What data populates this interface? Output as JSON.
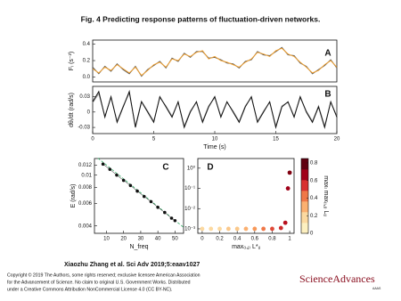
{
  "title": "Fig. 4 Predicting response patterns of fluctuation-driven networks.",
  "credit": "Xiaozhu Zhang et al. Sci Adv 2019;5:eaav1027",
  "copyright": [
    "Copyright © 2019 The Authors, some rights reserved; exclusive licensee American Association",
    "for the Advancement of Science. No claim to original U.S. Government Works. Distributed",
    "under a Creative Commons Attribution NonCommercial License 4.0 (CC BY-NC)."
  ],
  "logo": {
    "name": "ScienceAdvances",
    "sub": "AAAS"
  },
  "chart_data": [
    {
      "type": "line",
      "panel_label": "A",
      "ylabel": "Fᵢ (s⁻²)",
      "xlim": [
        0,
        20
      ],
      "ylim": [
        -0.06,
        0.45
      ],
      "yticks": [
        {
          "value": 0,
          "label": "0.0"
        },
        0.2,
        0.4
      ],
      "x": [
        0,
        0.5,
        1,
        1.5,
        2,
        2.5,
        3,
        3.5,
        4,
        4.5,
        5,
        5.5,
        6,
        6.5,
        7,
        7.5,
        8,
        8.5,
        9,
        9.5,
        10,
        10.5,
        11,
        11.5,
        12,
        12.5,
        13,
        13.5,
        14,
        14.5,
        15,
        15.5,
        16,
        16.5,
        17,
        17.5,
        18,
        18.5,
        19,
        19.5,
        20
      ],
      "series": [
        {
          "color": "#555555",
          "values": [
            0.12,
            0.04,
            0.13,
            0.07,
            0.16,
            0.09,
            0.04,
            0.13,
            0.01,
            0.09,
            0.14,
            0.19,
            0.11,
            0.23,
            0.19,
            0.29,
            0.24,
            0.31,
            0.31,
            0.23,
            0.24,
            0.21,
            0.17,
            0.16,
            0.11,
            0.19,
            0.21,
            0.31,
            0.27,
            0.26,
            0.31,
            0.36,
            0.27,
            0.26,
            0.17,
            0.13,
            0.04,
            0.09,
            0.14,
            0.21,
            0.11
          ]
        },
        {
          "color": "#f0a030",
          "values": [
            0.1,
            0.05,
            0.12,
            0.08,
            0.15,
            0.1,
            0.05,
            0.12,
            0.02,
            0.08,
            0.15,
            0.18,
            0.12,
            0.22,
            0.2,
            0.28,
            0.25,
            0.3,
            0.32,
            0.22,
            0.25,
            0.2,
            0.18,
            0.15,
            0.12,
            0.18,
            0.22,
            0.3,
            0.28,
            0.25,
            0.32,
            0.35,
            0.28,
            0.25,
            0.18,
            0.12,
            0.05,
            0.08,
            0.15,
            0.2,
            0.12
          ]
        }
      ]
    },
    {
      "type": "line",
      "panel_label": "B",
      "ylabel": "dθᵢ/dt (rad/s)",
      "xlabel": "Time (s)",
      "xlim": [
        0,
        20
      ],
      "ylim": [
        -0.042,
        0.05
      ],
      "yticks": [
        -0.03,
        0,
        0.03
      ],
      "xticks": [
        0,
        5,
        10,
        15,
        20
      ],
      "x": [
        0,
        0.5,
        1,
        1.5,
        2,
        2.5,
        3,
        3.5,
        4,
        4.5,
        5,
        5.5,
        6,
        6.5,
        7,
        7.5,
        8,
        8.5,
        9,
        9.5,
        10,
        10.5,
        11,
        11.5,
        12,
        12.5,
        13,
        13.5,
        14,
        14.5,
        15,
        15.5,
        16,
        16.5,
        17,
        17.5,
        18,
        18.5,
        19,
        19.5,
        20
      ],
      "series": [
        {
          "color": "#999999",
          "values": [
            0.018,
            0.036,
            -0.008,
            0.028,
            -0.018,
            0.012,
            0.037,
            -0.027,
            0.021,
            0.002,
            -0.018,
            0.028,
            0.012,
            -0.008,
            0.019,
            -0.027,
            0.002,
            0.019,
            -0.018,
            0.012,
            0.028,
            -0.008,
            0.019,
            0.002,
            -0.018,
            0.012,
            0.028,
            -0.018,
            0.002,
            0.019,
            -0.027,
            0.012,
            0.019,
            -0.008,
            0.028,
            0.002,
            -0.018,
            0.012,
            -0.027,
            0.019,
            -0.008
          ]
        },
        {
          "color": "#111111",
          "values": [
            0.02,
            0.04,
            -0.01,
            0.03,
            -0.02,
            0.01,
            0.04,
            -0.03,
            0.02,
            0.0,
            -0.02,
            0.03,
            0.01,
            -0.01,
            0.02,
            -0.03,
            0.0,
            0.02,
            -0.02,
            0.01,
            0.03,
            -0.01,
            0.02,
            0.0,
            -0.02,
            0.01,
            0.03,
            -0.02,
            0.0,
            0.02,
            -0.03,
            0.01,
            0.02,
            -0.01,
            0.03,
            0.0,
            -0.02,
            0.01,
            -0.03,
            0.02,
            -0.01
          ]
        }
      ]
    },
    {
      "type": "scatter",
      "panel_label": "C",
      "ylabel": "E (rad/s)",
      "xlabel": "N_freq",
      "log_y": true,
      "xlim": [
        3,
        55
      ],
      "ylim": [
        0.0035,
        0.0135
      ],
      "xticks": [
        10,
        20,
        30,
        40,
        50
      ],
      "yticks": [
        0.004,
        0.006,
        0.008,
        0.01,
        0.012
      ],
      "series": [
        {
          "color": "#33aa66",
          "dashed": true,
          "x": [
            5,
            55
          ],
          "values": [
            0.0136,
            0.0039
          ]
        },
        {
          "color": "#111111",
          "x": [
            8,
            12,
            16,
            20,
            24,
            28,
            32,
            36,
            40,
            44,
            48,
            50
          ],
          "values": [
            0.0122,
            0.0111,
            0.01,
            0.0091,
            0.0083,
            0.0075,
            0.0068,
            0.0062,
            0.0056,
            0.0051,
            0.0046,
            0.0044
          ]
        }
      ]
    },
    {
      "type": "scatter",
      "panel_label": "D",
      "xlabel": "max₍ᵢ,ⱼ₎ L*ᵢⱼ",
      "log_y": true,
      "xlim": [
        -0.05,
        1.05
      ],
      "ylim": [
        0.0006,
        3
      ],
      "xticks": [
        0,
        0.2,
        0.4,
        0.6,
        0.8,
        1
      ],
      "yticks": [
        {
          "value": 0.001,
          "label": "10⁻³"
        },
        {
          "value": 0.01,
          "label": "10⁻²"
        },
        {
          "value": 0.1,
          "label": "10⁻¹"
        },
        {
          "value": 1,
          "label": "10⁰"
        }
      ],
      "series": [
        {
          "colors": [
            "#fcd9a0",
            "#fcd9a0",
            "#fcd9a0",
            "#fbc88a",
            "#fbc88a",
            "#fbb070",
            "#f89858",
            "#f07848",
            "#e04a38",
            "#cc2a2a",
            "#b8101e",
            "#a00018",
            "#800010"
          ],
          "x": [
            0,
            0.1,
            0.2,
            0.3,
            0.4,
            0.5,
            0.6,
            0.7,
            0.8,
            0.9,
            0.95,
            0.98,
            1.0
          ],
          "values": [
            0.001,
            0.001,
            0.001,
            0.001,
            0.001,
            0.001,
            0.001,
            0.001,
            0.001,
            0.0011,
            0.002,
            0.1,
            0.6
          ]
        }
      ],
      "colorbar": {
        "label": "maxₗ max₍ᵢ,ⱼ₎ Lᵢⱼ",
        "lim": [
          0,
          0.85
        ],
        "ticks": [
          0,
          0.2,
          0.4,
          0.6,
          0.8
        ],
        "colormap": [
          "#fdf0c0",
          "#fcd9a0",
          "#fbb070",
          "#f07848",
          "#d83030",
          "#a00018",
          "#600010"
        ]
      }
    }
  ]
}
